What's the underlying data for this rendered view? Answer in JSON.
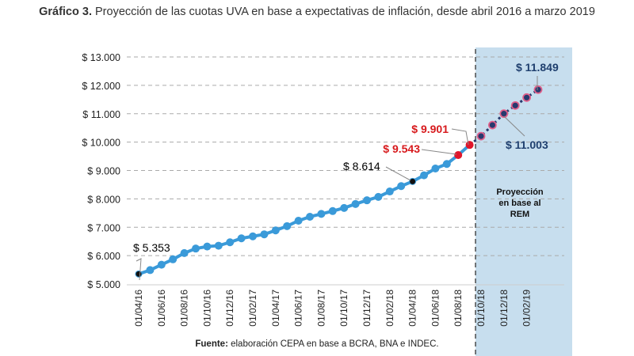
{
  "title": {
    "prefix": "Gráfico 3.",
    "text": " Proyección de las cuotas UVA en base a expectativas de inflación, desde abril 2016 a marzo 2019"
  },
  "footer": {
    "prefix": "Fuente:",
    "text": " elaboración CEPA en base a BCRA, BNA e INDEC."
  },
  "chart_data": {
    "type": "line",
    "title": "Proyección de las cuotas UVA en base a expectativas de inflación, desde abril 2016 a marzo 2019",
    "ylim": [
      5000,
      13000
    ],
    "yticks": [
      "$ 5.000",
      "$ 6.000",
      "$ 7.000",
      "$ 8.000",
      "$ 9.000",
      "$ 10.000",
      "$ 11.000",
      "$ 12.000",
      "$ 13.000"
    ],
    "ytick_values": [
      5000,
      6000,
      7000,
      8000,
      9000,
      10000,
      11000,
      12000,
      13000
    ],
    "grid": "horizontal-dashed",
    "x": [
      "01/04/16",
      "01/05/16",
      "01/06/16",
      "01/07/16",
      "01/08/16",
      "01/09/16",
      "01/10/16",
      "01/11/16",
      "01/12/16",
      "01/01/17",
      "01/02/17",
      "01/03/17",
      "01/04/17",
      "01/05/17",
      "01/06/17",
      "01/07/17",
      "01/08/17",
      "01/09/17",
      "01/10/17",
      "01/11/17",
      "01/12/17",
      "01/01/18",
      "01/02/18",
      "01/03/18",
      "01/04/18",
      "01/05/18",
      "01/06/18",
      "01/07/18",
      "01/08/18",
      "01/09/18",
      "01/10/18",
      "01/11/18",
      "01/12/18",
      "01/01/19",
      "01/02/19",
      "01/03/19"
    ],
    "xticks": [
      "01/04/16",
      "01/06/16",
      "01/08/16",
      "01/10/16",
      "01/12/16",
      "01/02/17",
      "01/04/17",
      "01/06/17",
      "01/08/17",
      "01/10/17",
      "01/12/17",
      "01/02/18",
      "01/04/18",
      "01/06/18",
      "01/08/18",
      "01/10/18",
      "01/12/18",
      "01/02/19"
    ],
    "values": [
      5353,
      5490,
      5680,
      5870,
      6090,
      6250,
      6320,
      6350,
      6470,
      6610,
      6680,
      6750,
      6890,
      7040,
      7230,
      7370,
      7470,
      7570,
      7680,
      7820,
      7950,
      8070,
      8260,
      8450,
      8614,
      8830,
      9070,
      9230,
      9543,
      9901,
      10210,
      10600,
      11003,
      11290,
      11570,
      11849
    ],
    "projection_start": "01/10/18",
    "projection_label": [
      "Proyección",
      "en base al",
      "REM"
    ],
    "annotations": [
      {
        "x": "01/04/16",
        "label": "$ 5.353",
        "color": "#000000"
      },
      {
        "x": "01/04/18",
        "label": "$ 8.614",
        "color": "#000000"
      },
      {
        "x": "01/08/18",
        "label": "$ 9.543",
        "color": "#d7191c"
      },
      {
        "x": "01/09/18",
        "label": "$ 9.901",
        "color": "#d7191c"
      },
      {
        "x": "01/12/18",
        "label": "$ 11.003",
        "color": "#1f3f6e"
      },
      {
        "x": "01/03/19",
        "label": "$ 11.849",
        "color": "#1f3f6e"
      }
    ],
    "colors": {
      "line": "#3a9ad9",
      "projection_bg": "#c7deee",
      "projection_point": "#283a6e",
      "highlight": "#e0162b"
    }
  }
}
